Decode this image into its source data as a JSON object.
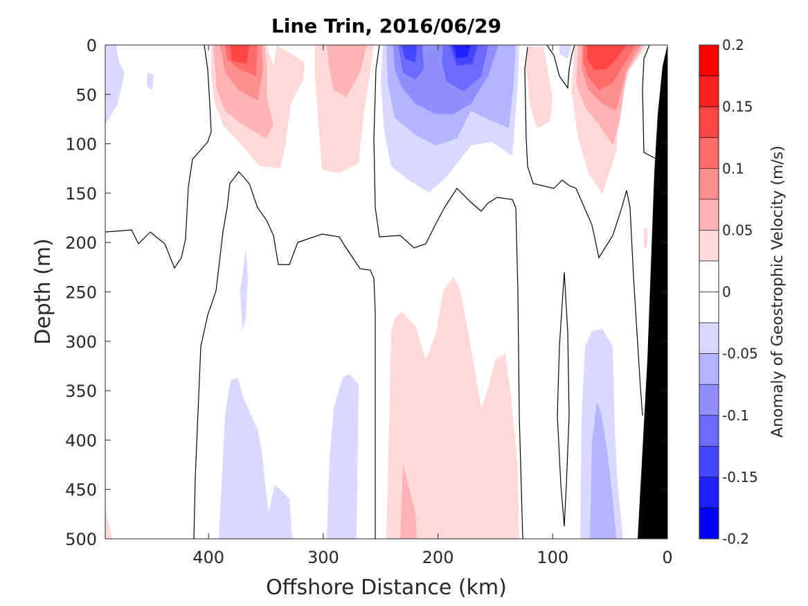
{
  "chart_data": {
    "type": "heatmap",
    "title": "Line Trin, 2016/06/29",
    "xlabel": "Offshore Distance (km)",
    "ylabel": "Depth (m)",
    "xlim": [
      490,
      0
    ],
    "ylim": [
      0,
      500
    ],
    "x_reversed": true,
    "y_reversed": true,
    "xticks": [
      400,
      300,
      200,
      100,
      0
    ],
    "yticks": [
      0,
      50,
      100,
      150,
      200,
      250,
      300,
      350,
      400,
      450,
      500
    ],
    "zero_contour": "black line",
    "colorbar": {
      "label": "Anomaly of Geostrophic Velocity (m/s)",
      "ticks": [
        0.2,
        0.15,
        0.1,
        0.05,
        0,
        -0.05,
        -0.1,
        -0.15,
        -0.2
      ],
      "levels": [
        0.2,
        0.175,
        0.15,
        0.125,
        0.1,
        0.075,
        0.05,
        0.025,
        0,
        -0.025,
        -0.05,
        -0.075,
        -0.1,
        -0.125,
        -0.15,
        -0.175,
        -0.2
      ],
      "colors": [
        "#ff0000",
        "#ff2020",
        "#ff4545",
        "#ff6a6a",
        "#ff8f8f",
        "#ffb3b3",
        "#ffd9d9",
        "#ffffff",
        "#ffffff",
        "#d9d9ff",
        "#b3b3ff",
        "#8f8fff",
        "#6a6aff",
        "#4545ff",
        "#2020ff",
        "#0000ff"
      ]
    },
    "features": [
      {
        "name": "positive core",
        "center_km": 375,
        "depth_m": [
          0,
          35
        ],
        "value": 0.15
      },
      {
        "name": "positive lobe",
        "center_km": 370,
        "depth_m": [
          0,
          130
        ],
        "value": 0.05
      },
      {
        "name": "positive lobe",
        "center_km": 290,
        "depth_m": [
          0,
          130
        ],
        "value": 0.05
      },
      {
        "name": "negative core",
        "center_km": 180,
        "depth_m": [
          0,
          30
        ],
        "value": -0.15
      },
      {
        "name": "negative core",
        "center_km": 230,
        "depth_m": [
          0,
          40
        ],
        "value": -0.125
      },
      {
        "name": "negative lobe",
        "center_km": 190,
        "depth_m": [
          0,
          150
        ],
        "value": -0.075
      },
      {
        "name": "positive core",
        "center_km": 55,
        "depth_m": [
          0,
          40
        ],
        "value": 0.15
      },
      {
        "name": "positive lobe",
        "center_km": 55,
        "depth_m": [
          0,
          155
        ],
        "value": 0.05
      },
      {
        "name": "weak positive",
        "center_km": 190,
        "depth_m": [
          235,
          500
        ],
        "value": 0.025
      },
      {
        "name": "weak negative",
        "center_km": 55,
        "depth_m": [
          285,
          500
        ],
        "value": -0.075
      },
      {
        "name": "weak negative",
        "center_km": 360,
        "depth_m": [
          340,
          500
        ],
        "value": -0.025
      },
      {
        "name": "weak negative",
        "center_km": 290,
        "depth_m": [
          340,
          500
        ],
        "value": -0.025
      },
      {
        "name": "bathymetry",
        "center_km": 10,
        "depth_m": [
          0,
          500
        ],
        "value": null
      }
    ]
  },
  "colors": {
    "background": "#ffffff",
    "land": "#000000",
    "contour": "#000000"
  }
}
